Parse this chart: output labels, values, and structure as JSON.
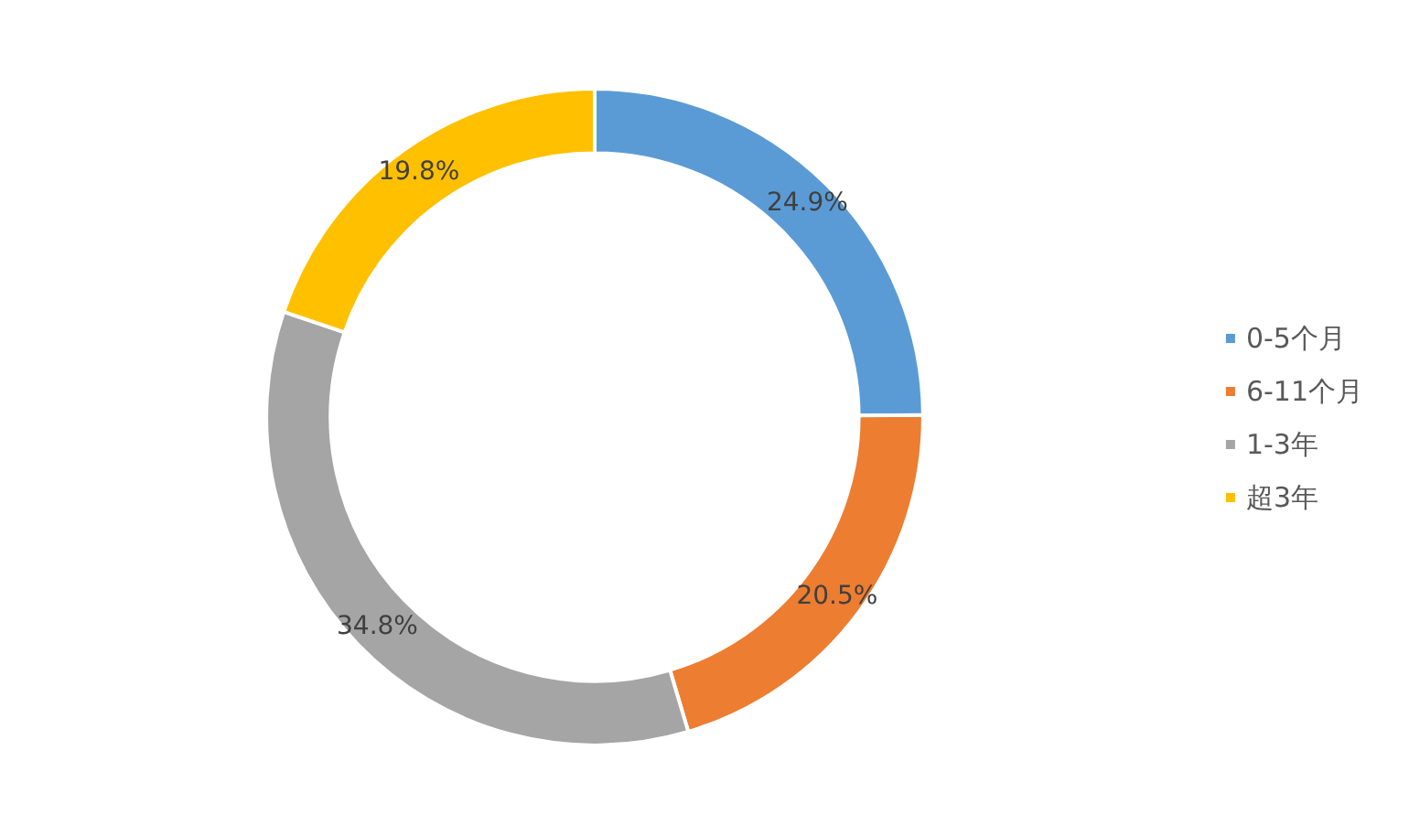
{
  "chart_data": {
    "type": "donut",
    "categories": [
      "0-5个月",
      "6-11个月",
      "1-3年",
      "超3年"
    ],
    "values": [
      24.9,
      20.5,
      34.8,
      19.8
    ],
    "colors": [
      "#5b9bd5",
      "#ed7d31",
      "#a5a5a5",
      "#ffc000"
    ],
    "value_labels": [
      "24.9%",
      "20.5%",
      "34.8%",
      "19.8%"
    ],
    "legend": "right"
  }
}
